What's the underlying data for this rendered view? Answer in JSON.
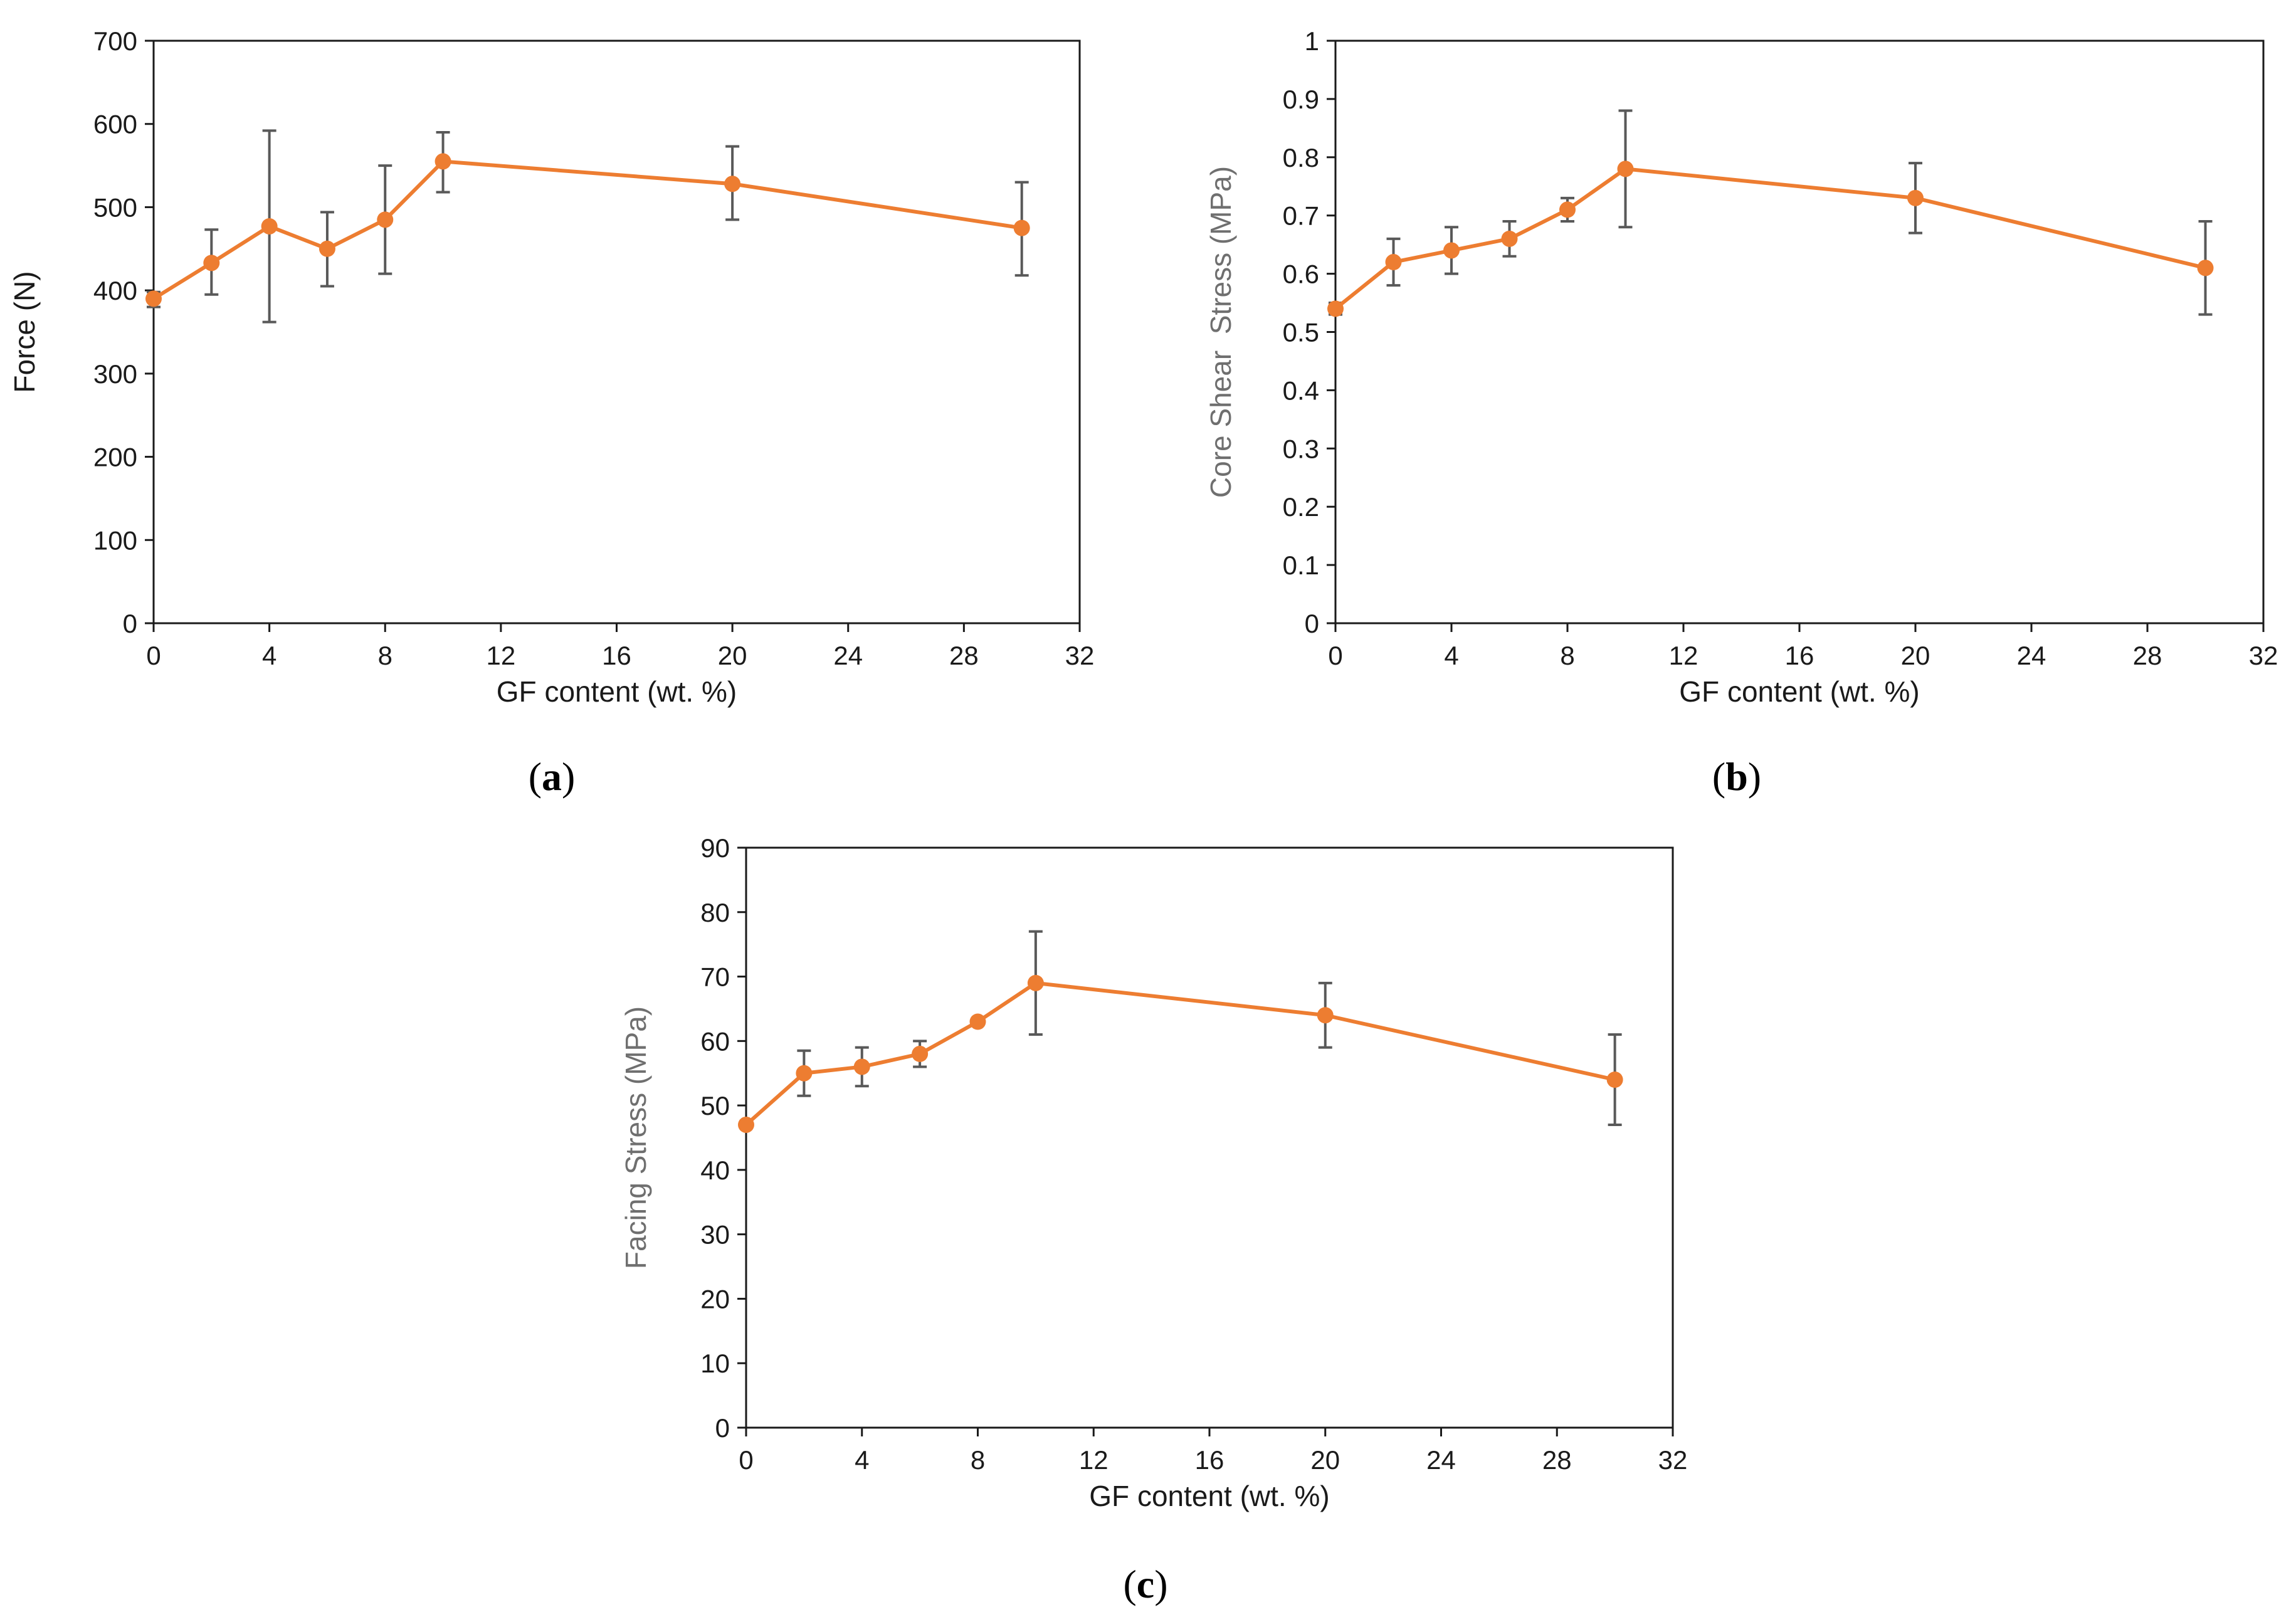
{
  "colors": {
    "series": "#ED7D31",
    "error_bar": "#595959",
    "axis": "#1a1a1a"
  },
  "chart_data": [
    {
      "id": "a",
      "panel_label": "a",
      "type": "line",
      "title": "",
      "xlabel": "GF content (wt. %)",
      "ylabel": "Force (N)",
      "xlim": [
        0,
        32
      ],
      "ylim": [
        0,
        700
      ],
      "xticks": [
        "0",
        "4",
        "8",
        "12",
        "16",
        "20",
        "24",
        "28",
        "32"
      ],
      "yticks": [
        "0",
        "100",
        "200",
        "300",
        "400",
        "500",
        "600",
        "700"
      ],
      "x_categories": [
        "0",
        "2",
        "4",
        "6",
        "8",
        "10",
        "20",
        "30"
      ],
      "series": [
        {
          "name": "Force",
          "values": [
            390,
            433,
            477,
            450,
            485,
            555,
            528,
            475
          ],
          "err_upper": [
            398,
            473,
            592,
            494,
            550,
            590,
            573,
            530
          ],
          "err_lower": [
            380,
            395,
            362,
            405,
            420,
            518,
            485,
            418
          ]
        }
      ]
    },
    {
      "id": "b",
      "panel_label": "b",
      "type": "line",
      "title": "",
      "xlabel": "GF content (wt. %)",
      "ylabel": "Core Shear  Stress (MPa)",
      "xlim": [
        0,
        32
      ],
      "ylim": [
        0,
        1
      ],
      "xticks": [
        "0",
        "4",
        "8",
        "12",
        "16",
        "20",
        "24",
        "28",
        "32"
      ],
      "yticks": [
        "0",
        "0.1",
        "0.2",
        "0.3",
        "0.4",
        "0.5",
        "0.6",
        "0.7",
        "0.8",
        "0.9",
        "1"
      ],
      "x_categories": [
        "0",
        "2",
        "4",
        "6",
        "8",
        "10",
        "20",
        "30"
      ],
      "series": [
        {
          "name": "Core Shear Stress",
          "values": [
            0.54,
            0.62,
            0.64,
            0.66,
            0.71,
            0.78,
            0.73,
            0.61
          ],
          "err_upper": [
            0.55,
            0.66,
            0.68,
            0.69,
            0.73,
            0.88,
            0.79,
            0.69
          ],
          "err_lower": [
            0.53,
            0.58,
            0.6,
            0.63,
            0.69,
            0.68,
            0.67,
            0.53
          ]
        }
      ]
    },
    {
      "id": "c",
      "panel_label": "c",
      "type": "line",
      "title": "",
      "xlabel": "GF content (wt. %)",
      "ylabel": "Facing Stress (MPa)",
      "xlim": [
        0,
        32
      ],
      "ylim": [
        0,
        90
      ],
      "xticks": [
        "0",
        "4",
        "8",
        "12",
        "16",
        "20",
        "24",
        "28",
        "32"
      ],
      "yticks": [
        "0",
        "10",
        "20",
        "30",
        "40",
        "50",
        "60",
        "70",
        "80",
        "90"
      ],
      "x_categories": [
        "0",
        "2",
        "4",
        "6",
        "8",
        "10",
        "20",
        "30"
      ],
      "series": [
        {
          "name": "Facing Stress",
          "values": [
            47,
            55,
            56,
            58,
            63,
            69,
            64,
            54
          ],
          "err_upper": [
            47.5,
            58.5,
            59,
            60,
            63.5,
            77,
            69,
            61
          ],
          "err_lower": [
            46.5,
            51.5,
            53,
            56,
            62.5,
            61,
            59,
            47
          ]
        }
      ]
    }
  ]
}
